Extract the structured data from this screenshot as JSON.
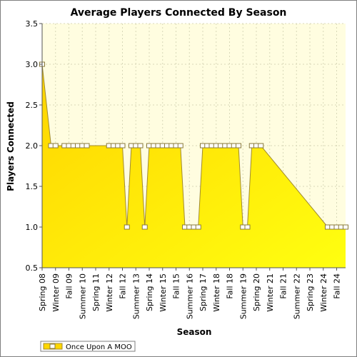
{
  "chart_data": {
    "type": "area",
    "title": "Average Players Connected By Season",
    "xlabel": "Season",
    "ylabel": "Players Connected",
    "ylim": [
      0.5,
      3.5
    ],
    "yticks": [
      "0.5",
      "1.0",
      "1.5",
      "2.0",
      "2.5",
      "3.0",
      "3.5"
    ],
    "grid": true,
    "legend_position": "bottom-left",
    "colors": {
      "plot_bg": "#fffde0",
      "area_top": "#ffd700",
      "area_bottom": "#ffff00",
      "line": "#a08a30",
      "marker_fill": "#ffffff",
      "marker_stroke": "#8a7a3a",
      "grid": "#d8d8b8"
    },
    "x_labels": [
      "Spring 08",
      "Winter 09",
      "Fall 09",
      "Summer 10",
      "Spring 11",
      "Winter 12",
      "Fall 12",
      "Summer 13",
      "Spring 14",
      "Winter 15",
      "Fall 15",
      "Summer 16",
      "Spring 17",
      "Winter 18",
      "Fall 18",
      "Summer 19",
      "Spring 20",
      "Winter 21",
      "Fall 21",
      "Summer 22",
      "Spring 23",
      "Winter 24",
      "Fall 24"
    ],
    "label_indices": [
      0,
      3,
      6,
      9,
      12,
      15,
      18,
      21,
      24,
      27,
      30,
      33,
      36,
      39,
      42,
      45,
      48,
      51,
      54,
      57,
      60,
      63,
      66
    ],
    "x_count": 69,
    "series": [
      {
        "name": "Once Upon A MOO",
        "points": [
          [
            0,
            3.0
          ],
          [
            2,
            2.0
          ],
          [
            3,
            2.0
          ],
          [
            5,
            2.0
          ],
          [
            6,
            2.0
          ],
          [
            7,
            2.0
          ],
          [
            8,
            2.0
          ],
          [
            9,
            2.0
          ],
          [
            10,
            2.0
          ],
          [
            15,
            2.0
          ],
          [
            16,
            2.0
          ],
          [
            17,
            2.0
          ],
          [
            18,
            2.0
          ],
          [
            19,
            1.0
          ],
          [
            20,
            2.0
          ],
          [
            21,
            2.0
          ],
          [
            22,
            2.0
          ],
          [
            23,
            1.0
          ],
          [
            24,
            2.0
          ],
          [
            25,
            2.0
          ],
          [
            26,
            2.0
          ],
          [
            27,
            2.0
          ],
          [
            28,
            2.0
          ],
          [
            29,
            2.0
          ],
          [
            30,
            2.0
          ],
          [
            31,
            2.0
          ],
          [
            32,
            1.0
          ],
          [
            33,
            1.0
          ],
          [
            34,
            1.0
          ],
          [
            35,
            1.0
          ],
          [
            36,
            2.0
          ],
          [
            37,
            2.0
          ],
          [
            38,
            2.0
          ],
          [
            39,
            2.0
          ],
          [
            40,
            2.0
          ],
          [
            41,
            2.0
          ],
          [
            42,
            2.0
          ],
          [
            43,
            2.0
          ],
          [
            44,
            2.0
          ],
          [
            45,
            1.0
          ],
          [
            46,
            1.0
          ],
          [
            47,
            2.0
          ],
          [
            48,
            2.0
          ],
          [
            49,
            2.0
          ],
          [
            64,
            1.0
          ],
          [
            65,
            1.0
          ],
          [
            66,
            1.0
          ],
          [
            67,
            1.0
          ],
          [
            68,
            1.0
          ]
        ]
      }
    ]
  }
}
